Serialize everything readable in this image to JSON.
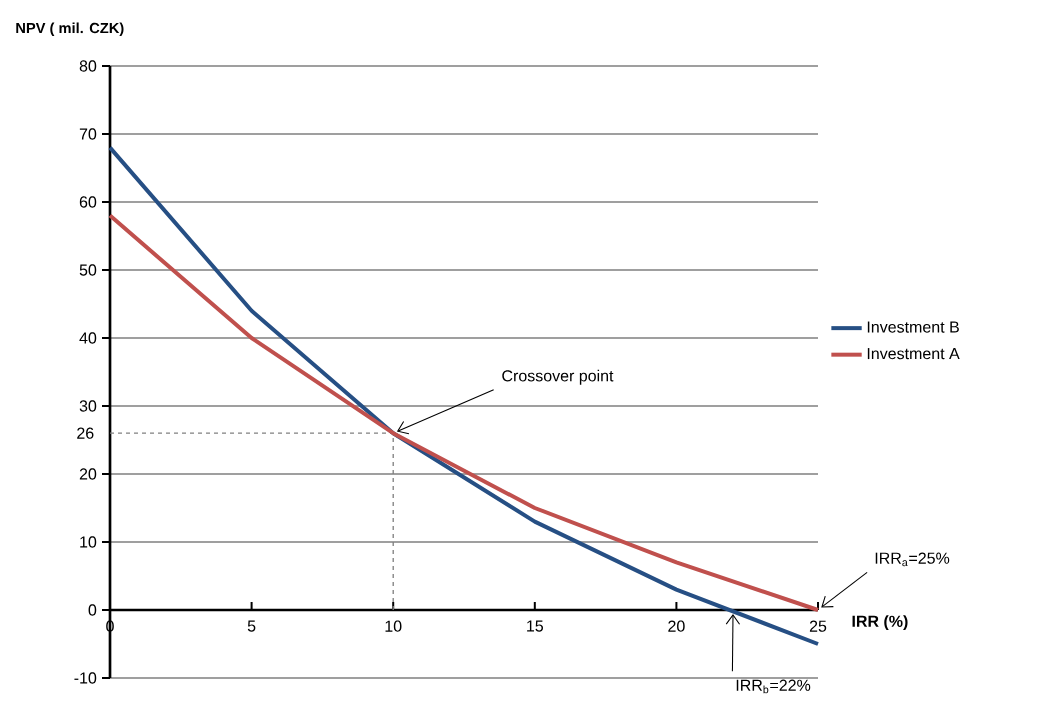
{
  "chart_data": {
    "type": "line",
    "xlabel": "IRR (%)",
    "ylabel": "NPV ( mil. CZK)",
    "x": [
      0,
      5,
      10,
      15,
      20,
      25
    ],
    "series": [
      {
        "name": "Investment B",
        "color": "#264f84",
        "values": [
          68,
          44,
          26,
          13,
          3,
          -5
        ]
      },
      {
        "name": "Investment A",
        "color": "#c0504d",
        "values": [
          58,
          40,
          26,
          15,
          7,
          0
        ]
      }
    ],
    "xlim": [
      0,
      25
    ],
    "xticks": [
      0,
      5,
      10,
      15,
      20,
      25
    ],
    "ylim": [
      -10,
      80
    ],
    "yticks": [
      -10,
      0,
      10,
      20,
      30,
      40,
      50,
      60,
      70,
      80
    ],
    "grid": "y",
    "legend": "right",
    "line_style": "solid",
    "ref_lines": [
      {
        "axis": "y",
        "value": 26,
        "label": "26",
        "color": "#808080",
        "line_style": "dashed"
      },
      {
        "axis": "x",
        "value": 10,
        "label": null,
        "color": "#808080",
        "line_style": "dashed"
      }
    ],
    "annotations": [
      {
        "text": "Crossover point",
        "x": 10,
        "y": 26
      },
      {
        "text": "IRR$_{a}$=25%",
        "x": 25,
        "y": 0
      },
      {
        "text": "IRR$_{b}$=22%",
        "x": 22,
        "y": 0
      }
    ]
  }
}
